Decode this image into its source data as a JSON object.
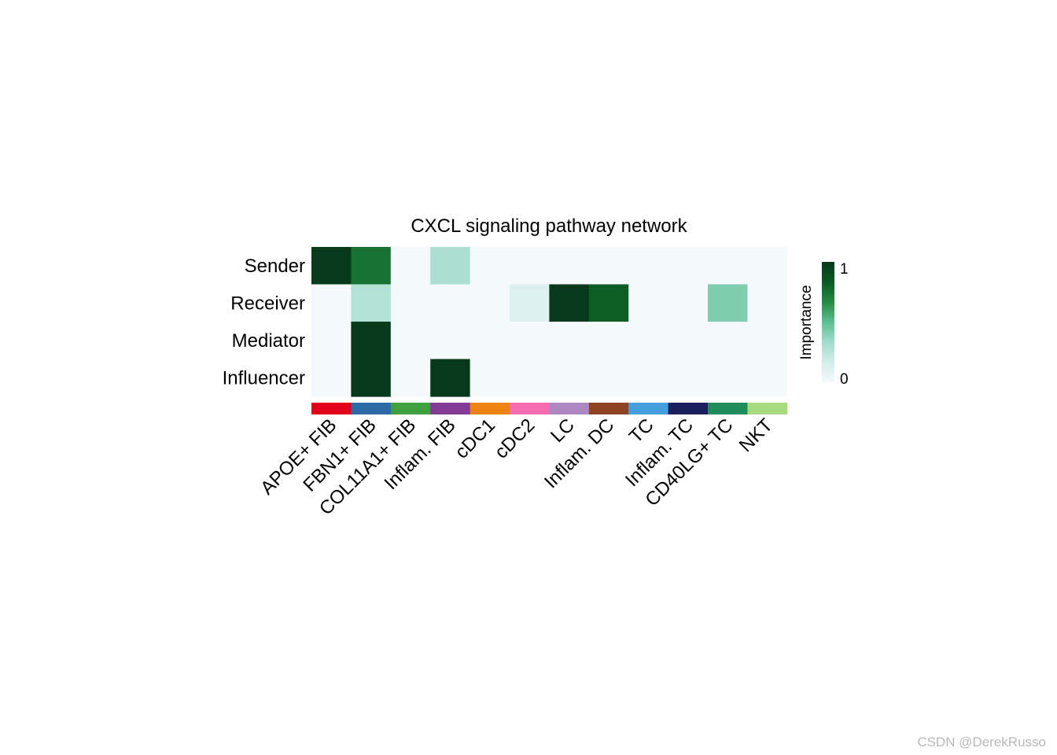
{
  "chart_data": {
    "type": "heatmap",
    "title": "CXCL signaling pathway network",
    "rows": [
      "Sender",
      "Receiver",
      "Mediator",
      "Influencer"
    ],
    "columns": [
      "APOE+ FIB",
      "FBN1+ FIB",
      "COL11A1+ FIB",
      "Inflam. FIB",
      "cDC1",
      "cDC2",
      "LC",
      "Inflam. DC",
      "TC",
      "Inflam. TC",
      "CD40LG+ TC",
      "NKT"
    ],
    "values": [
      [
        1.0,
        0.75,
        0.0,
        0.3,
        0.0,
        0.0,
        0.0,
        0.0,
        0.0,
        0.0,
        0.0,
        0.0
      ],
      [
        0.0,
        0.28,
        0.0,
        0.0,
        0.0,
        0.12,
        1.0,
        0.82,
        0.0,
        0.0,
        0.42,
        0.0
      ],
      [
        0.0,
        1.0,
        0.0,
        0.0,
        0.0,
        0.0,
        0.0,
        0.0,
        0.0,
        0.0,
        0.0,
        0.0
      ],
      [
        0.0,
        1.0,
        0.0,
        1.0,
        0.0,
        0.0,
        0.0,
        0.0,
        0.0,
        0.0,
        0.0,
        0.0
      ]
    ],
    "column_colors": [
      "#e0001a",
      "#2e6aa8",
      "#3ea03e",
      "#843a96",
      "#f08113",
      "#f56cb0",
      "#ad88c0",
      "#8e4421",
      "#459fdc",
      "#1b1f5e",
      "#1f8c5c",
      "#a7da7c"
    ],
    "colorscale": [
      "#f4f9fb",
      "#d4ecec",
      "#a2dccb",
      "#5cbf92",
      "#268a42",
      "#0a5a24",
      "#07391a"
    ],
    "legend": {
      "title": "Importance",
      "min": 0,
      "max": 1,
      "min_label": "0",
      "max_label": "1",
      "position": "right"
    }
  },
  "watermark": "CSDN @DerekRusso"
}
